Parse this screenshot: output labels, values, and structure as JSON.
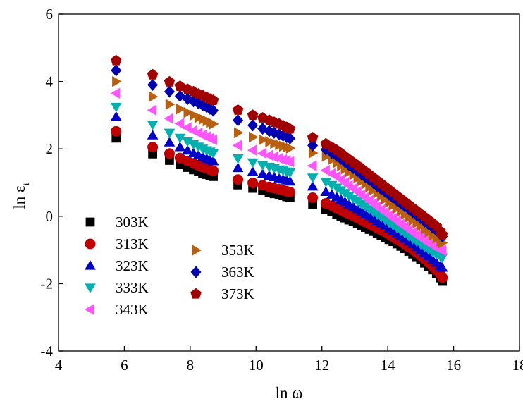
{
  "chart_data": {
    "type": "scatter",
    "title": "",
    "xlabel": "ln ω",
    "ylabel_main": "ln ε",
    "ylabel_sub": "i",
    "xlim": [
      4,
      18
    ],
    "ylim": [
      -4,
      6
    ],
    "xticks": [
      4,
      6,
      8,
      10,
      12,
      14,
      16,
      18
    ],
    "yticks": [
      -4,
      -2,
      0,
      2,
      4,
      6
    ],
    "grid": false,
    "legend_placement": "lower-left, two columns",
    "x": [
      5.75,
      6.86,
      7.37,
      7.69,
      7.92,
      8.1,
      8.25,
      8.38,
      8.5,
      8.6,
      8.7,
      9.45,
      9.9,
      10.2,
      10.4,
      10.55,
      10.7,
      10.82,
      10.93,
      11.03,
      11.72,
      12.12,
      12.3,
      12.45,
      12.58,
      12.7,
      12.82,
      12.95,
      13.08,
      13.2,
      13.32,
      13.44,
      13.56,
      13.68,
      13.8,
      13.92,
      14.04,
      14.16,
      14.28,
      14.4,
      14.52,
      14.64,
      14.76,
      14.88,
      15.0,
      15.12,
      15.24,
      15.36,
      15.48,
      15.6,
      15.66
    ],
    "series": [
      {
        "name": "303K",
        "marker": "square",
        "color": "#000000",
        "values": [
          2.32,
          1.85,
          1.66,
          1.53,
          1.45,
          1.38,
          1.33,
          1.28,
          1.24,
          1.21,
          1.18,
          0.93,
          0.83,
          0.76,
          0.71,
          0.67,
          0.64,
          0.61,
          0.58,
          0.56,
          0.36,
          0.2,
          0.13,
          0.06,
          0.0,
          -0.05,
          -0.11,
          -0.16,
          -0.22,
          -0.28,
          -0.33,
          -0.39,
          -0.45,
          -0.51,
          -0.57,
          -0.63,
          -0.69,
          -0.75,
          -0.82,
          -0.89,
          -0.96,
          -1.04,
          -1.12,
          -1.2,
          -1.29,
          -1.39,
          -1.49,
          -1.59,
          -1.7,
          -1.83,
          -1.93
        ]
      },
      {
        "name": "313K",
        "marker": "circle",
        "color": "#c00000",
        "values": [
          2.52,
          2.05,
          1.86,
          1.73,
          1.64,
          1.57,
          1.51,
          1.46,
          1.42,
          1.38,
          1.35,
          1.09,
          0.99,
          0.92,
          0.87,
          0.83,
          0.8,
          0.77,
          0.74,
          0.72,
          0.55,
          0.38,
          0.31,
          0.24,
          0.18,
          0.12,
          0.07,
          0.01,
          -0.05,
          -0.11,
          -0.17,
          -0.23,
          -0.29,
          -0.35,
          -0.41,
          -0.47,
          -0.54,
          -0.61,
          -0.68,
          -0.75,
          -0.83,
          -0.91,
          -0.99,
          -1.08,
          -1.17,
          -1.27,
          -1.37,
          -1.48,
          -1.6,
          -1.73,
          -1.82
        ]
      },
      {
        "name": "323K",
        "marker": "triangle-up",
        "color": "#0000c8",
        "values": [
          2.95,
          2.4,
          2.19,
          2.05,
          1.95,
          1.87,
          1.81,
          1.76,
          1.71,
          1.67,
          1.63,
          1.43,
          1.32,
          1.25,
          1.2,
          1.16,
          1.12,
          1.09,
          1.06,
          1.03,
          0.88,
          0.72,
          0.64,
          0.56,
          0.49,
          0.42,
          0.35,
          0.28,
          0.21,
          0.14,
          0.07,
          0.0,
          -0.07,
          -0.14,
          -0.21,
          -0.28,
          -0.36,
          -0.43,
          -0.51,
          -0.59,
          -0.67,
          -0.75,
          -0.83,
          -0.92,
          -1.01,
          -1.1,
          -1.19,
          -1.29,
          -1.38,
          -1.48,
          -1.53
        ]
      },
      {
        "name": "333K",
        "marker": "triangle-down",
        "color": "#00b0b0",
        "values": [
          3.25,
          2.72,
          2.48,
          2.33,
          2.22,
          2.14,
          2.07,
          2.01,
          1.96,
          1.92,
          1.88,
          1.72,
          1.6,
          1.52,
          1.47,
          1.43,
          1.39,
          1.36,
          1.33,
          1.3,
          1.15,
          1.02,
          0.93,
          0.85,
          0.77,
          0.69,
          0.61,
          0.53,
          0.45,
          0.37,
          0.29,
          0.21,
          0.13,
          0.05,
          -0.03,
          -0.11,
          -0.19,
          -0.27,
          -0.35,
          -0.43,
          -0.51,
          -0.59,
          -0.67,
          -0.75,
          -0.83,
          -0.91,
          -0.99,
          -1.06,
          -1.13,
          -1.19,
          -1.22
        ]
      },
      {
        "name": "343K",
        "marker": "triangle-left",
        "color": "#ff55ff",
        "values": [
          3.65,
          3.15,
          2.9,
          2.75,
          2.63,
          2.54,
          2.47,
          2.41,
          2.36,
          2.31,
          2.27,
          2.1,
          1.96,
          1.87,
          1.81,
          1.76,
          1.72,
          1.68,
          1.65,
          1.62,
          1.5,
          1.36,
          1.27,
          1.18,
          1.09,
          1.0,
          0.91,
          0.82,
          0.73,
          0.64,
          0.56,
          0.47,
          0.38,
          0.29,
          0.2,
          0.12,
          0.03,
          -0.06,
          -0.14,
          -0.23,
          -0.31,
          -0.4,
          -0.48,
          -0.56,
          -0.64,
          -0.72,
          -0.8,
          -0.87,
          -0.93,
          -0.99,
          -1.02
        ]
      },
      {
        "name": "353K",
        "marker": "triangle-right",
        "color": "#b86010",
        "values": [
          4.0,
          3.55,
          3.32,
          3.18,
          3.08,
          3.0,
          2.93,
          2.88,
          2.83,
          2.78,
          2.74,
          2.48,
          2.35,
          2.27,
          2.21,
          2.16,
          2.12,
          2.08,
          2.05,
          2.02,
          1.88,
          1.78,
          1.68,
          1.59,
          1.5,
          1.41,
          1.32,
          1.23,
          1.14,
          1.05,
          0.96,
          0.87,
          0.78,
          0.69,
          0.6,
          0.51,
          0.42,
          0.33,
          0.24,
          0.15,
          0.06,
          -0.03,
          -0.12,
          -0.2,
          -0.29,
          -0.38,
          -0.47,
          -0.56,
          -0.65,
          -0.74,
          -0.79
        ]
      },
      {
        "name": "363K",
        "marker": "diamond",
        "color": "#0000b0",
        "values": [
          4.33,
          3.9,
          3.7,
          3.57,
          3.48,
          3.41,
          3.35,
          3.29,
          3.24,
          3.19,
          3.14,
          2.85,
          2.7,
          2.6,
          2.53,
          2.48,
          2.43,
          2.39,
          2.35,
          2.31,
          2.1,
          1.98,
          1.88,
          1.79,
          1.7,
          1.61,
          1.52,
          1.43,
          1.34,
          1.25,
          1.16,
          1.08,
          0.99,
          0.9,
          0.81,
          0.73,
          0.64,
          0.55,
          0.47,
          0.38,
          0.29,
          0.21,
          0.12,
          0.03,
          -0.06,
          -0.15,
          -0.24,
          -0.33,
          -0.42,
          -0.52,
          -0.6
        ]
      },
      {
        "name": "373K",
        "marker": "pentagon",
        "color": "#a00000",
        "values": [
          4.62,
          4.2,
          3.99,
          3.86,
          3.77,
          3.7,
          3.63,
          3.58,
          3.53,
          3.48,
          3.44,
          3.15,
          3.0,
          2.92,
          2.85,
          2.79,
          2.74,
          2.69,
          2.64,
          2.59,
          2.33,
          2.15,
          2.05,
          1.96,
          1.87,
          1.78,
          1.69,
          1.6,
          1.51,
          1.42,
          1.33,
          1.24,
          1.15,
          1.06,
          0.97,
          0.88,
          0.79,
          0.7,
          0.61,
          0.52,
          0.43,
          0.34,
          0.25,
          0.16,
          0.07,
          -0.02,
          -0.11,
          -0.2,
          -0.3,
          -0.45,
          -0.55
        ]
      }
    ]
  }
}
